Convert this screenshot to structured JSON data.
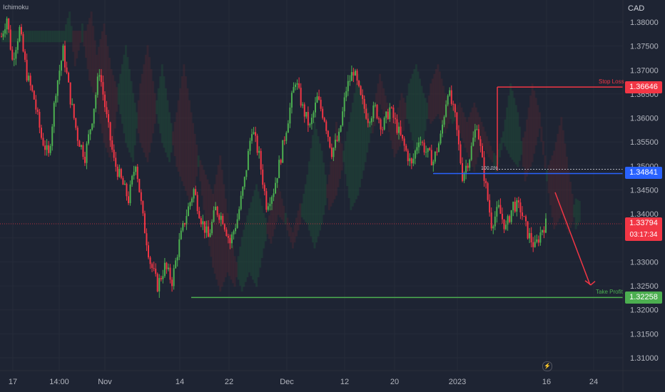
{
  "indicator": "Ichimoku",
  "currency": "CAD",
  "colors": {
    "background": "#1e2433",
    "up": "#4caf50",
    "down": "#f23645",
    "stop_loss": "#f23645",
    "entry": "#2962ff",
    "take_profit": "#4caf50",
    "arrow": "#f23645"
  },
  "levels": {
    "stop_loss": {
      "label": "Stop Loss",
      "price": "1.36646"
    },
    "entry": {
      "label": "",
      "price": "1.34841",
      "fib_label": "100.0%"
    },
    "take_profit": {
      "label": "Take Profit",
      "price": "1.32258"
    },
    "current": {
      "price": "1.33794",
      "timer": "03:17:34"
    }
  },
  "axis_icon": "lightning-icon",
  "chart_data": {
    "type": "candlestick",
    "pair_quote": "CAD",
    "y_ticks": [
      "1.38000",
      "1.37500",
      "1.37000",
      "1.36500",
      "1.36000",
      "1.35500",
      "1.35000",
      "1.34500",
      "1.34000",
      "1.33500",
      "1.33000",
      "1.32500",
      "1.32000",
      "1.31500",
      "1.31000"
    ],
    "x_ticks": [
      "17",
      "14:00",
      "Nov",
      "14",
      "22",
      "Dec",
      "12",
      "20",
      "2023",
      "16",
      "24"
    ],
    "ylim": [
      1.305,
      1.3855
    ],
    "path": [
      [
        0,
        1.377
      ],
      [
        3,
        1.381
      ],
      [
        6,
        1.372
      ],
      [
        10,
        1.3785
      ],
      [
        14,
        1.369
      ],
      [
        18,
        1.364
      ],
      [
        22,
        1.356
      ],
      [
        26,
        1.352
      ],
      [
        30,
        1.366
      ],
      [
        34,
        1.374
      ],
      [
        38,
        1.364
      ],
      [
        42,
        1.356
      ],
      [
        46,
        1.352
      ],
      [
        50,
        1.36
      ],
      [
        54,
        1.37
      ],
      [
        58,
        1.36
      ],
      [
        62,
        1.351
      ],
      [
        66,
        1.347
      ],
      [
        70,
        1.343
      ],
      [
        74,
        1.351
      ],
      [
        78,
        1.339
      ],
      [
        82,
        1.33
      ],
      [
        86,
        1.325
      ],
      [
        90,
        1.329
      ],
      [
        94,
        1.326
      ],
      [
        98,
        1.334
      ],
      [
        102,
        1.34
      ],
      [
        106,
        1.345
      ],
      [
        110,
        1.339
      ],
      [
        114,
        1.335
      ],
      [
        118,
        1.341
      ],
      [
        122,
        1.339
      ],
      [
        126,
        1.334
      ],
      [
        130,
        1.339
      ],
      [
        134,
        1.347
      ],
      [
        138,
        1.358
      ],
      [
        142,
        1.352
      ],
      [
        146,
        1.342
      ],
      [
        150,
        1.345
      ],
      [
        154,
        1.352
      ],
      [
        158,
        1.36
      ],
      [
        162,
        1.368
      ],
      [
        166,
        1.362
      ],
      [
        170,
        1.358
      ],
      [
        174,
        1.364
      ],
      [
        178,
        1.36
      ],
      [
        182,
        1.353
      ],
      [
        186,
        1.356
      ],
      [
        190,
        1.366
      ],
      [
        194,
        1.37
      ],
      [
        198,
        1.364
      ],
      [
        202,
        1.36
      ],
      [
        206,
        1.362
      ],
      [
        210,
        1.358
      ],
      [
        214,
        1.362
      ],
      [
        218,
        1.358
      ],
      [
        222,
        1.354
      ],
      [
        226,
        1.35
      ],
      [
        230,
        1.356
      ],
      [
        234,
        1.353
      ],
      [
        238,
        1.351
      ],
      [
        242,
        1.356
      ],
      [
        246,
        1.366
      ],
      [
        250,
        1.36
      ],
      [
        254,
        1.348
      ],
      [
        258,
        1.352
      ],
      [
        262,
        1.359
      ],
      [
        266,
        1.348
      ],
      [
        270,
        1.338
      ],
      [
        274,
        1.341
      ],
      [
        278,
        1.337
      ],
      [
        282,
        1.342
      ],
      [
        286,
        1.341
      ],
      [
        290,
        1.336
      ],
      [
        294,
        1.333
      ],
      [
        298,
        1.337
      ],
      [
        300,
        1.3379
      ]
    ]
  }
}
